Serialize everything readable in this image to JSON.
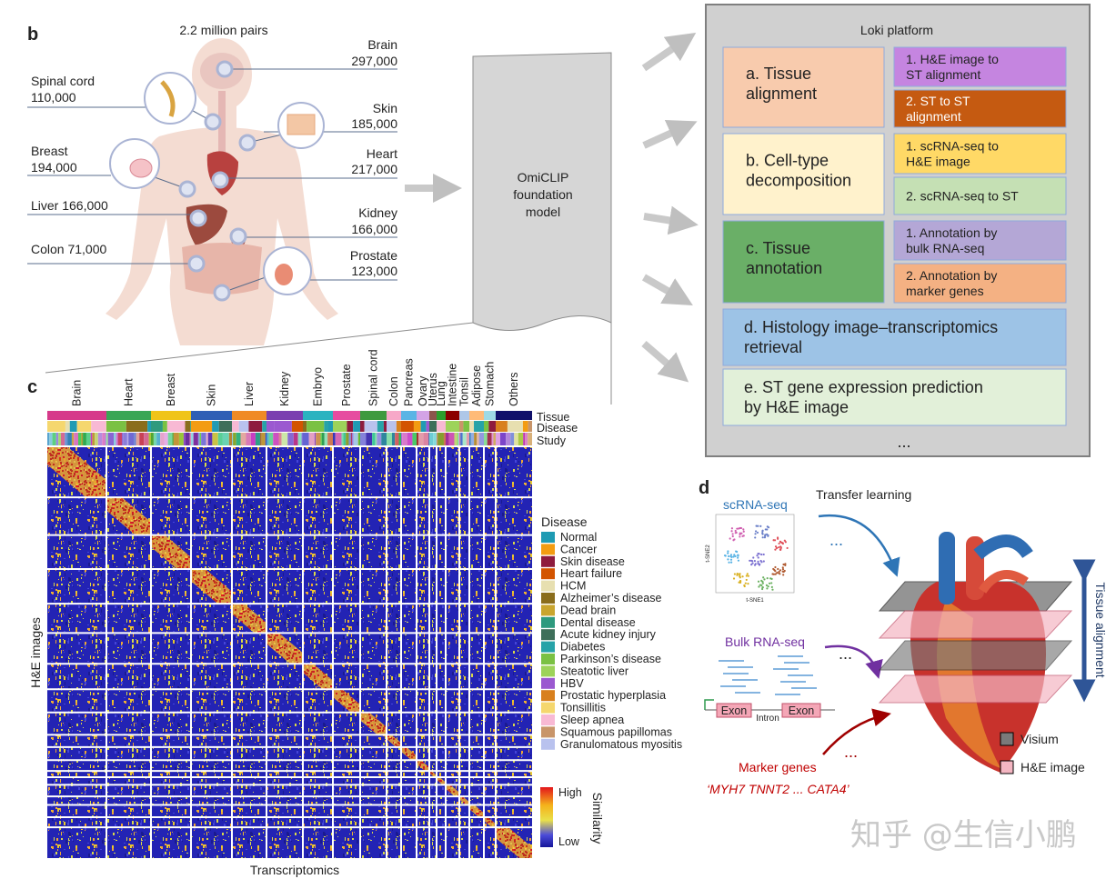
{
  "panel_b": {
    "label": "b",
    "title": "2.2 million pairs",
    "organs": [
      {
        "name": "Brain",
        "count": "297,000"
      },
      {
        "name": "Spinal cord",
        "count": "110,000"
      },
      {
        "name": "Skin",
        "count": "185,000"
      },
      {
        "name": "Breast",
        "count": "194,000"
      },
      {
        "name": "Heart",
        "count": "217,000"
      },
      {
        "name": "Liver 166,000"
      },
      {
        "name": "Kidney",
        "count": "166,000"
      },
      {
        "name": "Colon 71,000"
      },
      {
        "name": "Prostate",
        "count": "123,000"
      }
    ]
  },
  "model": {
    "lines": [
      "OmiCLIP",
      "foundation",
      "model"
    ]
  },
  "loki": {
    "title": "Loki platform",
    "tasks": [
      {
        "lines": [
          "a. Tissue",
          "alignment"
        ],
        "color": "#f8cbad",
        "subtasks": [
          {
            "lines": [
              "1. H&E image to",
              "ST alignment"
            ],
            "color": "#c585e0"
          },
          {
            "lines": [
              "2. ST to ST",
              "alignment"
            ],
            "color": "#c55a11"
          }
        ]
      },
      {
        "lines": [
          "b. Cell-type",
          "decomposition"
        ],
        "color": "#fff2cc",
        "subtasks": [
          {
            "lines": [
              "1. scRNA-seq to",
              "H&E image"
            ],
            "color": "#ffd966"
          },
          {
            "lines": [
              "2. scRNA-seq to ST"
            ],
            "color": "#c5e0b4"
          }
        ]
      },
      {
        "lines": [
          "c. Tissue",
          "annotation"
        ],
        "color": "#6aaf67",
        "subtasks": [
          {
            "lines": [
              "1. Annotation by",
              "bulk RNA-seq"
            ],
            "color": "#b4a7d6"
          },
          {
            "lines": [
              "2. Annotation by",
              "marker genes"
            ],
            "color": "#f4b183"
          }
        ]
      },
      {
        "lines": [
          "d. Histology image–transcriptomics",
          "retrieval"
        ],
        "color": "#9dc3e6"
      },
      {
        "lines": [
          "e. ST gene expression prediction",
          "by H&E image"
        ],
        "color": "#e2f0d9"
      }
    ],
    "more": "..."
  },
  "panel_c": {
    "label": "c",
    "columns": [
      "Brain",
      "Heart",
      "Breast",
      "Skin",
      "Liver",
      "Kidney",
      "Embryo",
      "Prostate",
      "Spinal cord",
      "Colon",
      "Pancreas",
      "Ovary",
      "Uterus",
      "Lung",
      "Intestine",
      "Tonsil",
      "Adipose",
      "Stomach",
      "Others"
    ],
    "rows": [
      "Tissue",
      "Disease",
      "Study"
    ],
    "legend_title": "Disease",
    "legend": [
      {
        "name": "Normal",
        "color": "#1f9bb3"
      },
      {
        "name": "Cancer",
        "color": "#f39c12"
      },
      {
        "name": "Skin disease",
        "color": "#8e1b3e"
      },
      {
        "name": "Heart failure",
        "color": "#d35400"
      },
      {
        "name": "HCM",
        "color": "#e7dfb0"
      },
      {
        "name": "Alzheimer’s disease",
        "color": "#8a6d1c"
      },
      {
        "name": "Dead brain",
        "color": "#c9a52e"
      },
      {
        "name": "Dental disease",
        "color": "#2e9a7e"
      },
      {
        "name": "Acute kidney injury",
        "color": "#3e6f5a"
      },
      {
        "name": "Diabetes",
        "color": "#27a3a8"
      },
      {
        "name": "Parkinson’s disease",
        "color": "#7ac143"
      },
      {
        "name": "Steatotic liver",
        "color": "#9dd35a"
      },
      {
        "name": "HBV",
        "color": "#9b59d0"
      },
      {
        "name": "Prostatic hyperplasia",
        "color": "#d8801e"
      },
      {
        "name": "Tonsillitis",
        "color": "#f5d76e"
      },
      {
        "name": "Sleep apnea",
        "color": "#f8b9d4"
      },
      {
        "name": "Squamous papillomas",
        "color": "#c8956a"
      },
      {
        "name": "Granulomatous myositis",
        "color": "#b9c2ee"
      }
    ],
    "high": "High",
    "low": "Low",
    "colorbar_title": "Similarity",
    "y_label": "H&E images",
    "x_label": "Transcriptomics"
  },
  "panel_d": {
    "label": "d",
    "scrna": "scRNA-seq",
    "tsne_x": "t-SNE1",
    "tsne_y": "t-SNE2",
    "transfer": "Transfer learning",
    "bulk": "Bulk RNA-seq",
    "exons": [
      "Exon",
      "Exon"
    ],
    "intron": "Intron",
    "marker": "Marker genes",
    "genes": "‘MYH7 TNNT2 ... CATA4’",
    "ellipses": [
      "...",
      "...",
      "..."
    ],
    "alignment": "Tissue alignment",
    "visium": "Visium",
    "he": "H&E image"
  },
  "watermark": "知乎 @生信小鹏"
}
